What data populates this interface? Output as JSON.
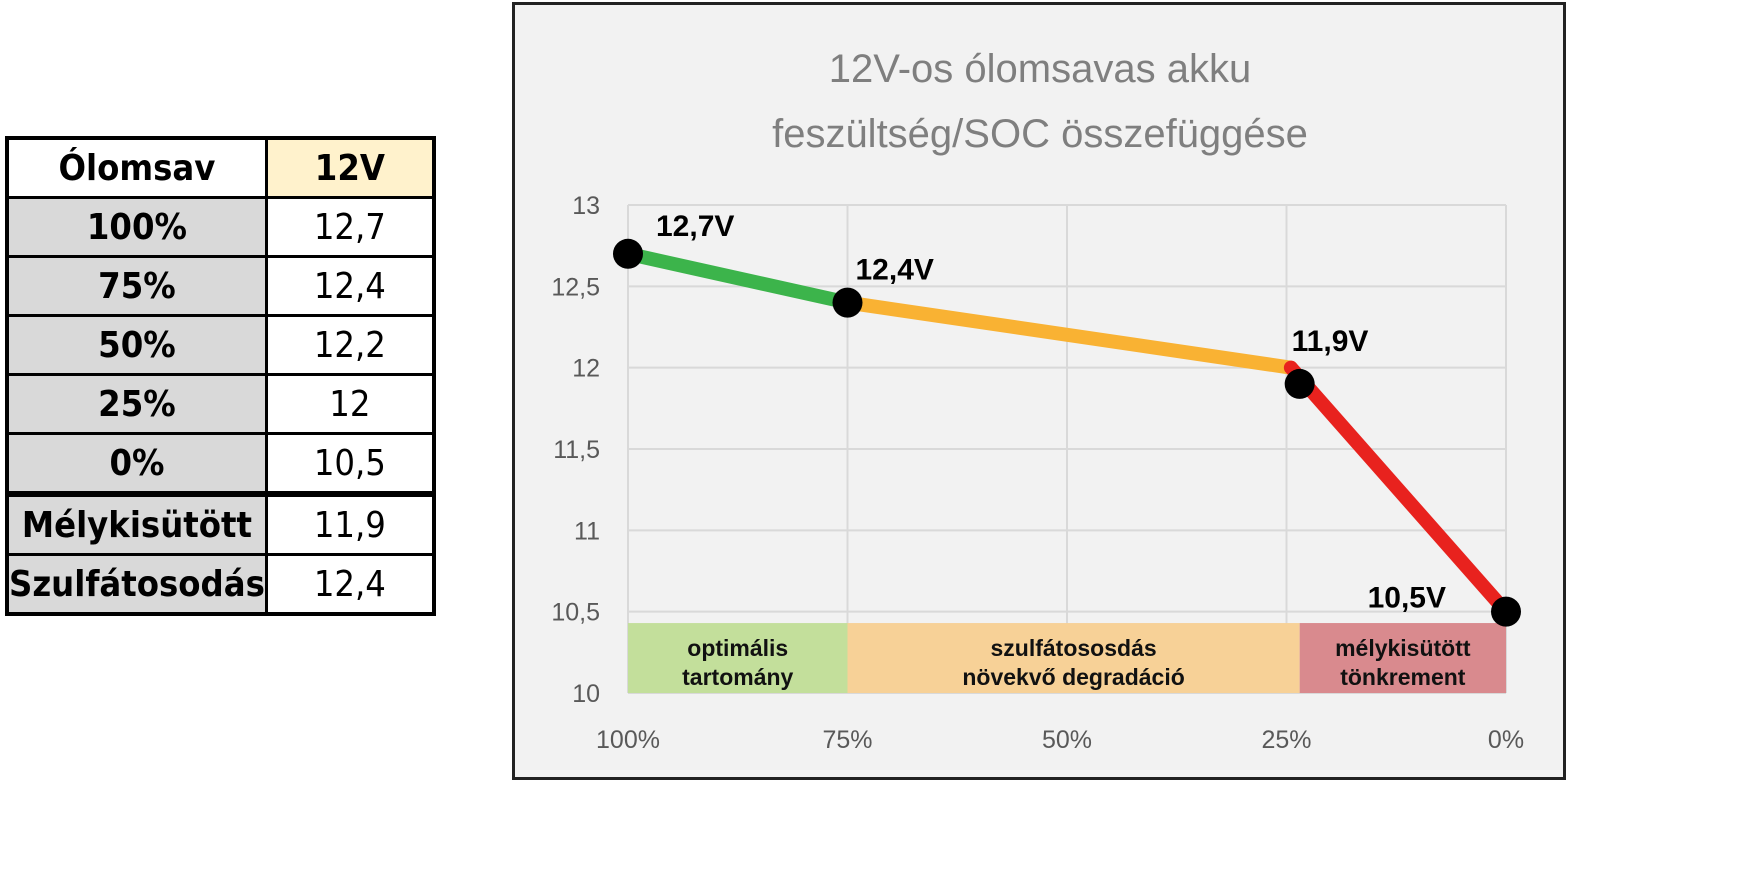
{
  "table": {
    "header": [
      "Ólomsav",
      "12V"
    ],
    "rows": [
      [
        "100%",
        "12,7"
      ],
      [
        "75%",
        "12,4"
      ],
      [
        "50%",
        "12,2"
      ],
      [
        "25%",
        "12"
      ],
      [
        "0%",
        "10,5"
      ],
      [
        "Mélykisütött",
        "11,9"
      ],
      [
        "Szulfátosodás",
        "12,4"
      ]
    ]
  },
  "chart_data": {
    "type": "line",
    "title": [
      "12V-os ólomsavas akku",
      "feszültség/SOC összefüggése"
    ],
    "xlabel": "",
    "ylabel": "",
    "x_ticks": [
      "100%",
      "75%",
      "50%",
      "25%",
      "0%"
    ],
    "x_range": [
      100,
      0
    ],
    "y_ticks": [
      "13",
      "12,5",
      "12",
      "11,5",
      "11",
      "10,5",
      "10"
    ],
    "ylim": [
      10,
      13
    ],
    "grid": true,
    "segments": [
      {
        "from": [
          100,
          12.7
        ],
        "to": [
          75,
          12.4
        ],
        "color": "#3cb44b"
      },
      {
        "from": [
          75,
          12.4
        ],
        "to": [
          24.5,
          12.0
        ],
        "color": "#f9b233"
      },
      {
        "from": [
          24.5,
          12.0
        ],
        "to": [
          0,
          10.5
        ],
        "color": "#e8221e"
      }
    ],
    "points": [
      {
        "x": 100,
        "y": 12.7,
        "label": "12,7V"
      },
      {
        "x": 75,
        "y": 12.4,
        "label": "12,4V"
      },
      {
        "x": 23.5,
        "y": 11.9,
        "label": "11,9V"
      },
      {
        "x": 0,
        "y": 10.5,
        "label": "10,5V"
      }
    ],
    "bands": [
      {
        "from": 100,
        "to": 75,
        "color": "#c3df9b",
        "label": [
          "optimális",
          "tartomány"
        ]
      },
      {
        "from": 75,
        "to": 23.5,
        "color": "#f7d197",
        "label": [
          "szulfátososdás",
          "növekvő degradáció"
        ]
      },
      {
        "from": 23.5,
        "to": 0,
        "color": "#d98a8e",
        "label": [
          "mélykisütött",
          "tönkrement"
        ]
      }
    ],
    "band_top": 10.43
  }
}
